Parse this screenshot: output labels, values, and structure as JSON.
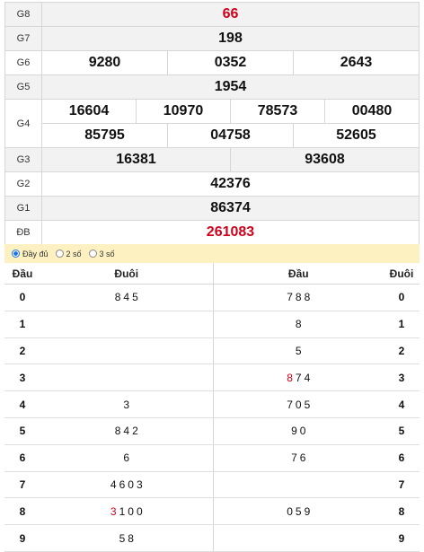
{
  "prizes": [
    {
      "label": "G8",
      "values": [
        "66"
      ],
      "red": true
    },
    {
      "label": "G7",
      "values": [
        "198"
      ]
    },
    {
      "label": "G6",
      "values": [
        "9280",
        "0352",
        "2643"
      ]
    },
    {
      "label": "G5",
      "values": [
        "1954"
      ]
    },
    {
      "label": "G4",
      "values": [
        "16604",
        "10970",
        "78573",
        "00480",
        "85795",
        "04758",
        "52605"
      ]
    },
    {
      "label": "G3",
      "values": [
        "16381",
        "93608"
      ]
    },
    {
      "label": "G2",
      "values": [
        "42376"
      ]
    },
    {
      "label": "G1",
      "values": [
        "86374"
      ]
    },
    {
      "label": "ĐB",
      "values": [
        "261083"
      ],
      "red": true
    }
  ],
  "options": [
    "Đầy đủ",
    "2 số",
    "3 số"
  ],
  "loto": {
    "headers": [
      "Đầu",
      "Đuôi",
      "Đầu",
      "Đuôi"
    ],
    "rows": [
      {
        "left_head": "0",
        "left_tail": [
          "8",
          "4",
          "5"
        ],
        "right_head": [
          "7",
          "8",
          "8"
        ],
        "right_tail": "0"
      },
      {
        "left_head": "1",
        "left_tail": [],
        "right_head": [
          "8"
        ],
        "right_tail": "1"
      },
      {
        "left_head": "2",
        "left_tail": [],
        "right_head": [
          "5"
        ],
        "right_tail": "2"
      },
      {
        "left_head": "3",
        "left_tail": [],
        "right_head": [
          "8",
          "7",
          "4"
        ],
        "right_tail": "3",
        "right_red_index": 0
      },
      {
        "left_head": "4",
        "left_tail": [
          "3"
        ],
        "right_head": [
          "7",
          "0",
          "5"
        ],
        "right_tail": "4"
      },
      {
        "left_head": "5",
        "left_tail": [
          "8",
          "4",
          "2"
        ],
        "right_head": [
          "9",
          "0"
        ],
        "right_tail": "5"
      },
      {
        "left_head": "6",
        "left_tail": [
          "6"
        ],
        "right_head": [
          "7",
          "6"
        ],
        "right_tail": "6"
      },
      {
        "left_head": "7",
        "left_tail": [
          "4",
          "6",
          "0",
          "3"
        ],
        "right_head": [],
        "right_tail": "7"
      },
      {
        "left_head": "8",
        "left_tail": [
          "3",
          "1",
          "0",
          "0"
        ],
        "right_head": [
          "0",
          "5",
          "9"
        ],
        "right_tail": "8",
        "left_red_index": 0
      },
      {
        "left_head": "9",
        "left_tail": [
          "5",
          "8"
        ],
        "right_head": [],
        "right_tail": "9"
      }
    ]
  }
}
